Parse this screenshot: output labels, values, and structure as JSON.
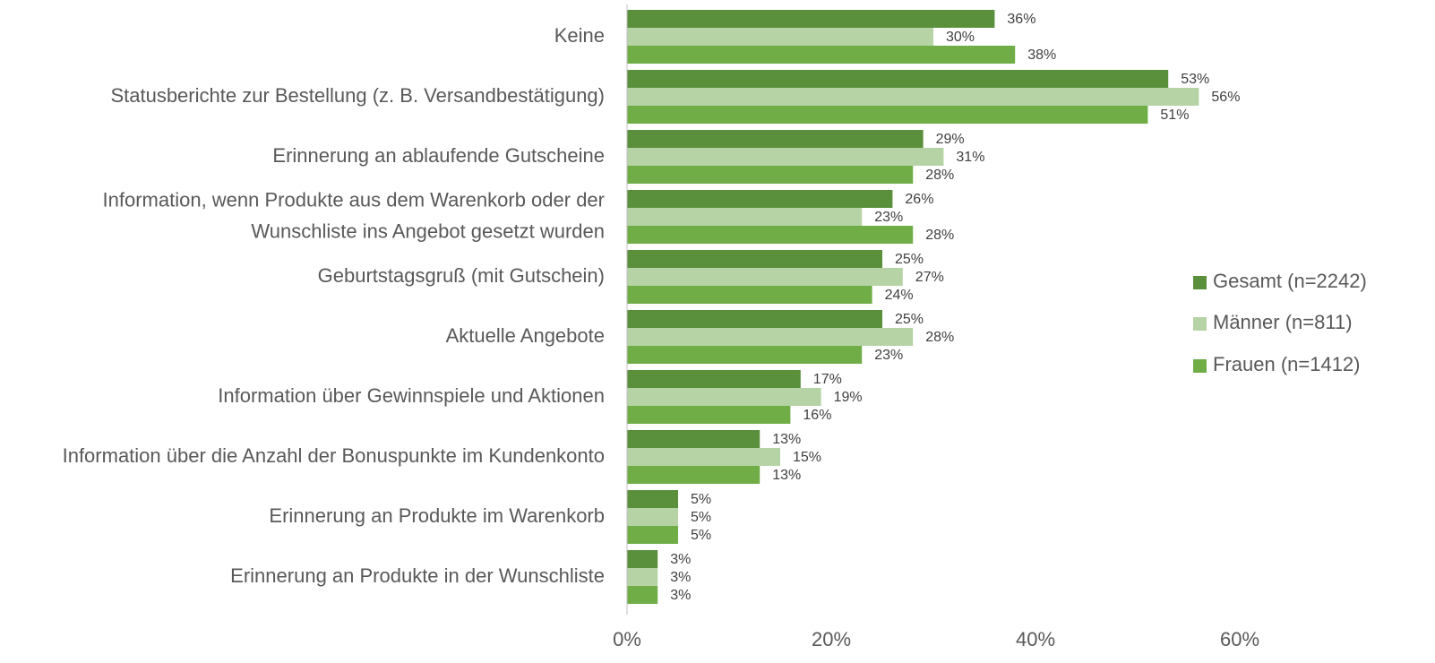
{
  "chart_data": {
    "type": "bar",
    "orientation": "horizontal",
    "categories": [
      "Keine",
      "Statusberichte zur Bestellung (z. B. Versandbestätigung)",
      "Erinnerung an ablaufende Gutscheine",
      "Information, wenn Produkte aus dem Warenkorb oder der\nWunschliste ins Angebot gesetzt wurden",
      "Geburtstagsgruß (mit Gutschein)",
      "Aktuelle Angebote",
      "Information über Gewinnspiele und Aktionen",
      "Information über die Anzahl der Bonuspunkte im Kundenkonto",
      "Erinnerung an Produkte im Warenkorb",
      "Erinnerung an Produkte in der Wunschliste"
    ],
    "series": [
      {
        "name": "Gesamt (n=2242)",
        "color": "#5a8f3c",
        "values": [
          36,
          53,
          29,
          26,
          25,
          25,
          17,
          13,
          5,
          3
        ],
        "value_labels": [
          "36%",
          "53%",
          "29%",
          "26%",
          "25%",
          "25%",
          "17%",
          "13%",
          "5%",
          "3%"
        ]
      },
      {
        "name": "Männer (n=811)",
        "color": "#b5d3a5",
        "values": [
          30,
          56,
          31,
          23,
          27,
          28,
          19,
          15,
          5,
          3
        ],
        "value_labels": [
          "30%",
          "56%",
          "31%",
          "23%",
          "27%",
          "28%",
          "19%",
          "15%",
          "5%",
          "3%"
        ]
      },
      {
        "name": "Frauen (n=1412)",
        "color": "#70ad47",
        "values": [
          38,
          51,
          28,
          28,
          24,
          23,
          16,
          13,
          5,
          3
        ],
        "value_labels": [
          "38%",
          "51%",
          "28%",
          "28%",
          "24%",
          "23%",
          "16%",
          "13%",
          "5%",
          "3%"
        ]
      }
    ],
    "xlim": [
      0,
      70
    ],
    "xticks": [
      {
        "value": 0,
        "label": "0%"
      },
      {
        "value": 20,
        "label": "20%"
      },
      {
        "value": 40,
        "label": "40%"
      },
      {
        "value": 60,
        "label": "60%"
      }
    ],
    "legend": "right"
  }
}
